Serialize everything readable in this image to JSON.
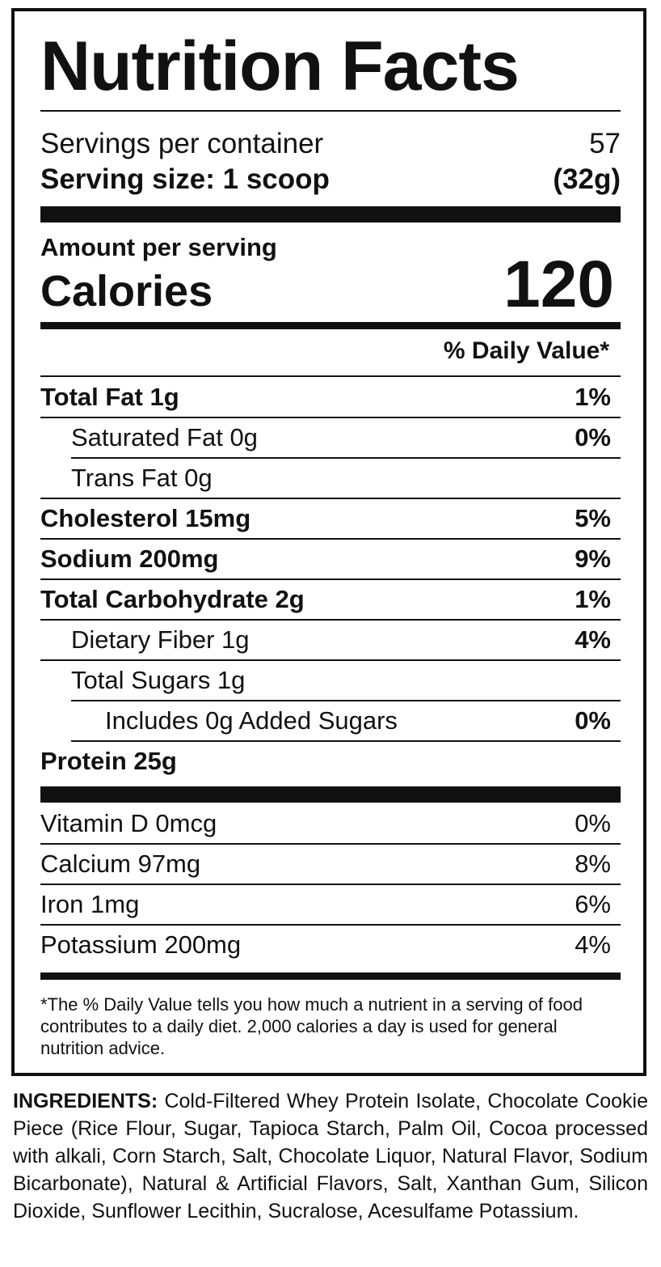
{
  "header": {
    "title": "Nutrition Facts",
    "servings_label": "Servings per container",
    "servings_value": "57",
    "serving_size_label": "Serving size: 1 scoop",
    "serving_size_value": "(32g)"
  },
  "calories": {
    "amount_label": "Amount per serving",
    "label": "Calories",
    "value": "120"
  },
  "daily_value_header": "% Daily Value*",
  "nutrients": [
    {
      "label": "Total Fat 1g",
      "dv": "1%"
    },
    {
      "label": "Saturated Fat 0g",
      "dv": "0%"
    },
    {
      "label": "Trans Fat 0g"
    },
    {
      "label": "Cholesterol 15mg",
      "dv": "5%"
    },
    {
      "label": "Sodium 200mg",
      "dv": "9%"
    },
    {
      "label": "Total Carbohydrate 2g",
      "dv": "1%"
    },
    {
      "label": "Dietary Fiber 1g",
      "dv": "4%"
    },
    {
      "label": "Total Sugars 1g"
    },
    {
      "label": "Includes 0g Added Sugars",
      "dv": "0%"
    },
    {
      "label": "Protein 25g"
    }
  ],
  "vitamins": [
    {
      "label": "Vitamin D 0mcg",
      "dv": "0%"
    },
    {
      "label": "Calcium 97mg",
      "dv": "8%"
    },
    {
      "label": "Iron 1mg",
      "dv": "6%"
    },
    {
      "label": "Potassium 200mg",
      "dv": "4%"
    }
  ],
  "footnote": "*The % Daily Value tells you how much a nutrient in a serving of food contributes to a daily diet. 2,000 calories a day is used for general nutrition advice.",
  "ingredients": {
    "label": "INGREDIENTS:",
    "text": "Cold-Filtered Whey Protein Isolate, Chocolate Cookie Piece (Rice Flour, Sugar, Tapioca Starch, Palm Oil, Cocoa processed with alkali, Corn Starch, Salt, Chocolate Liquor, Natural Flavor, Sodium Bicarbonate), Natural & Artificial Flavors, Salt, Xanthan Gum, Silicon Dioxide, Sunflower Lecithin, Sucralose, Acesulfame Potassium."
  }
}
